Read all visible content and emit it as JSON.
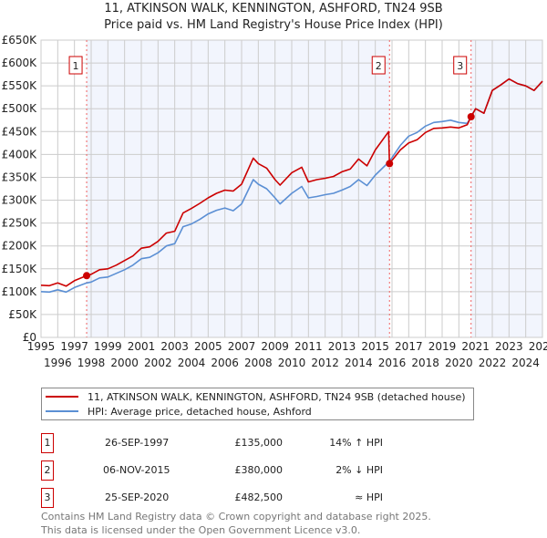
{
  "chart_data": {
    "type": "line",
    "title": "11, ATKINSON WALK, KENNINGTON, ASHFORD, TN24 9SB",
    "subtitle": "Price paid vs. HM Land Registry's House Price Index (HPI)",
    "xlim": [
      1995,
      2025
    ],
    "ylim": [
      0,
      650000
    ],
    "yticks": [
      0,
      50000,
      100000,
      150000,
      200000,
      250000,
      300000,
      350000,
      400000,
      450000,
      500000,
      550000,
      600000,
      650000
    ],
    "ytick_labels": [
      "£0",
      "£50K",
      "£100K",
      "£150K",
      "£200K",
      "£250K",
      "£300K",
      "£350K",
      "£400K",
      "£450K",
      "£500K",
      "£550K",
      "£600K",
      "£650K"
    ],
    "xtick_labels": [
      "1995",
      "1996",
      "1997",
      "1998",
      "1999",
      "2000",
      "2001",
      "2002",
      "2003",
      "2004",
      "2005",
      "2006",
      "2007",
      "2008",
      "2009",
      "2010",
      "2011",
      "2012",
      "2013",
      "2014",
      "2015",
      "2016",
      "2017",
      "2018",
      "2019",
      "2020",
      "2021",
      "2022",
      "2023",
      "2024",
      "2025"
    ],
    "grid": true,
    "series": [
      {
        "name": "11, ATKINSON WALK, KENNINGTON, ASHFORD, TN24 9SB (detached house)",
        "color": "#cc0000",
        "x": [
          1995,
          1995.5,
          1996,
          1996.5,
          1997,
          1997.73,
          1998,
          1998.5,
          1999,
          1999.5,
          2000,
          2000.5,
          2001,
          2001.5,
          2002,
          2002.5,
          2003,
          2003.5,
          2004,
          2004.5,
          2005,
          2005.5,
          2006,
          2006.5,
          2007,
          2007.7,
          2008,
          2008.5,
          2009,
          2009.3,
          2010,
          2010.6,
          2011,
          2011.5,
          2012,
          2012.5,
          2013,
          2013.5,
          2014,
          2014.5,
          2015,
          2015.8,
          2015.85,
          2016.5,
          2017,
          2017.5,
          2018,
          2018.5,
          2019,
          2019.5,
          2020,
          2020.5,
          2020.73,
          2021,
          2021.5,
          2022,
          2022.5,
          2023,
          2023.5,
          2024,
          2024.5,
          2025
        ],
        "y": [
          114000,
          113000,
          119000,
          112000,
          124000,
          135000,
          138000,
          148000,
          150000,
          158000,
          168000,
          178000,
          195000,
          198000,
          210000,
          228000,
          232000,
          272000,
          282000,
          293000,
          305000,
          315000,
          322000,
          320000,
          335000,
          392000,
          380000,
          370000,
          345000,
          333000,
          360000,
          372000,
          340000,
          345000,
          348000,
          352000,
          362000,
          368000,
          390000,
          375000,
          410000,
          450000,
          380000,
          410000,
          425000,
          432000,
          448000,
          457000,
          458000,
          460000,
          458000,
          465000,
          482500,
          500000,
          490000,
          540000,
          552000,
          565000,
          555000,
          550000,
          540000,
          560000
        ]
      },
      {
        "name": "HPI: Average price, detached house, Ashford",
        "color": "#5b8fd4",
        "x": [
          1995,
          1995.5,
          1996,
          1996.5,
          1997,
          1997.73,
          1998,
          1998.5,
          1999,
          1999.5,
          2000,
          2000.5,
          2001,
          2001.5,
          2002,
          2002.5,
          2003,
          2003.5,
          2004,
          2004.5,
          2005,
          2005.5,
          2006,
          2006.5,
          2007,
          2007.7,
          2008,
          2008.5,
          2009,
          2009.3,
          2010,
          2010.6,
          2011,
          2011.5,
          2012,
          2012.5,
          2013,
          2013.5,
          2014,
          2014.5,
          2015,
          2015.85,
          2016.5,
          2017,
          2017.5,
          2018,
          2018.5,
          2019,
          2019.5,
          2020,
          2020.5,
          2020.73,
          2021,
          2021.5,
          2022,
          2022.5,
          2023,
          2023.5,
          2024,
          2024.5,
          2025
        ],
        "y": [
          100000,
          99000,
          104000,
          99000,
          109000,
          119000,
          121000,
          130000,
          132000,
          140000,
          148000,
          158000,
          172000,
          175000,
          185000,
          200000,
          205000,
          242000,
          248000,
          258000,
          270000,
          278000,
          283000,
          277000,
          292000,
          345000,
          335000,
          325000,
          305000,
          292000,
          315000,
          330000,
          305000,
          308000,
          312000,
          315000,
          322000,
          330000,
          345000,
          332000,
          355000,
          385000,
          420000,
          440000,
          448000,
          462000,
          470000,
          472000,
          475000,
          470000,
          468000,
          482500,
          500000,
          490000,
          540000,
          552000,
          565000,
          555000,
          550000,
          540000,
          560000
        ]
      }
    ],
    "sales": [
      {
        "label": "1",
        "x": 1997.73,
        "y": 135000
      },
      {
        "label": "2",
        "x": 2015.85,
        "y": 380000
      },
      {
        "label": "3",
        "x": 2020.73,
        "y": 482500
      }
    ]
  },
  "legend": [
    {
      "label": "11, ATKINSON WALK, KENNINGTON, ASHFORD, TN24 9SB (detached house)",
      "color": "#cc0000"
    },
    {
      "label": "HPI: Average price, detached house, Ashford",
      "color": "#5b8fd4"
    }
  ],
  "table": [
    {
      "num": "1",
      "date": "26-SEP-1997",
      "price": "£135,000",
      "hpi": "14% ↑ HPI"
    },
    {
      "num": "2",
      "date": "06-NOV-2015",
      "price": "£380,000",
      "hpi": "2% ↓ HPI"
    },
    {
      "num": "3",
      "date": "25-SEP-2020",
      "price": "£482,500",
      "hpi": "≈ HPI"
    }
  ],
  "footer": [
    "Contains HM Land Registry data © Crown copyright and database right 2025.",
    "This data is licensed under the Open Government Licence v3.0."
  ]
}
